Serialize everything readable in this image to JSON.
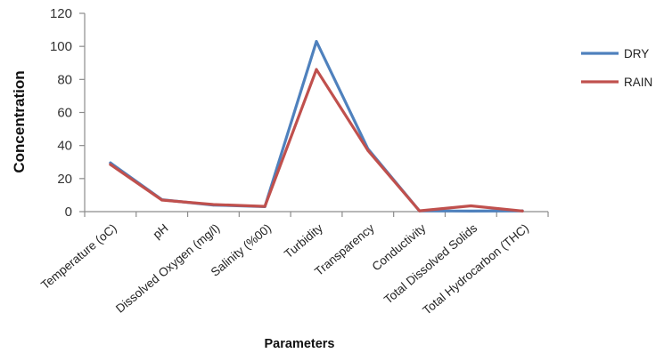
{
  "chart_data": {
    "type": "line",
    "title": "",
    "xlabel": "Parameters",
    "ylabel": "Concentration",
    "ylim": [
      0,
      120
    ],
    "yticks": [
      0,
      20,
      40,
      60,
      80,
      100,
      120
    ],
    "grid": false,
    "legend_position": "right",
    "categories": [
      "Temperature (oC)",
      "pH",
      "Dissolved Oxygen (mg/l)",
      "Salinity (%00)",
      "Turbidity",
      "Transparency",
      "Conductivity",
      "Total Dissolved Solids",
      "Total Hydrocarbon (THC)"
    ],
    "series": [
      {
        "name": "DRY",
        "color": "#4f81bd",
        "values": [
          29.5,
          7.2,
          4.0,
          3.0,
          103.0,
          38.0,
          0.5,
          0.3,
          0.5
        ]
      },
      {
        "name": "RAIN",
        "color": "#c0504d",
        "values": [
          28.5,
          7.0,
          4.3,
          3.2,
          86.0,
          37.0,
          0.5,
          3.5,
          0.4
        ]
      }
    ]
  }
}
